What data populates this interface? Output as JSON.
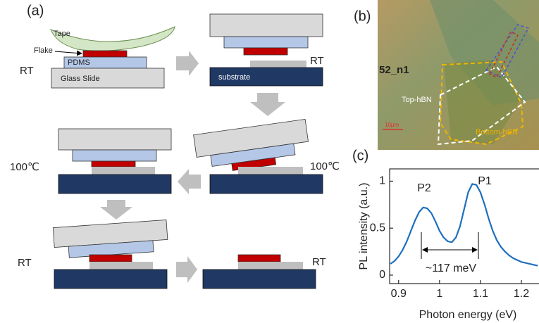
{
  "panel_a": {
    "label": "(a)",
    "tape": "Tape",
    "flake": "Flake",
    "pdms": "PDMS",
    "glass_slide": "Glass Slide",
    "substrate": "substrate",
    "temperatures": [
      "RT",
      "RT",
      "100℃",
      "100℃",
      "RT",
      "RT"
    ]
  },
  "panel_b": {
    "label": "(b)",
    "sample_id": "52_n1",
    "top": "Top-hBN",
    "bottom": "Bottom-hBN",
    "scale_bar": "10μm"
  },
  "chart_data": {
    "type": "line",
    "panel_label": "(c)",
    "x_label": "Photon energy (eV)",
    "y_label": "PL intensity (a.u.)",
    "annotations": [
      "P2",
      "P1",
      "~117 meV"
    ],
    "color": "#1f6fbf",
    "x": [
      0.88,
      0.89,
      0.9,
      0.91,
      0.92,
      0.93,
      0.94,
      0.95,
      0.96,
      0.97,
      0.98,
      0.99,
      1.0,
      1.01,
      1.02,
      1.03,
      1.04,
      1.05,
      1.06,
      1.07,
      1.08,
      1.09,
      1.1,
      1.11,
      1.12,
      1.13,
      1.14,
      1.15,
      1.16,
      1.17,
      1.18,
      1.19,
      1.2,
      1.21,
      1.22,
      1.23,
      1.24
    ],
    "values": [
      0.12,
      0.15,
      0.2,
      0.27,
      0.36,
      0.47,
      0.58,
      0.67,
      0.72,
      0.71,
      0.66,
      0.57,
      0.47,
      0.4,
      0.36,
      0.35,
      0.4,
      0.52,
      0.7,
      0.88,
      0.97,
      0.96,
      0.88,
      0.75,
      0.6,
      0.47,
      0.37,
      0.3,
      0.25,
      0.21,
      0.18,
      0.16,
      0.14,
      0.13,
      0.12,
      0.11,
      0.1
    ],
    "xlim": [
      0.878,
      1.243
    ],
    "ylim": [
      -0.09,
      1.13
    ],
    "xticks": [
      0.9,
      1,
      1.1,
      1.2
    ],
    "yticks": [
      0,
      0.5,
      1
    ]
  }
}
